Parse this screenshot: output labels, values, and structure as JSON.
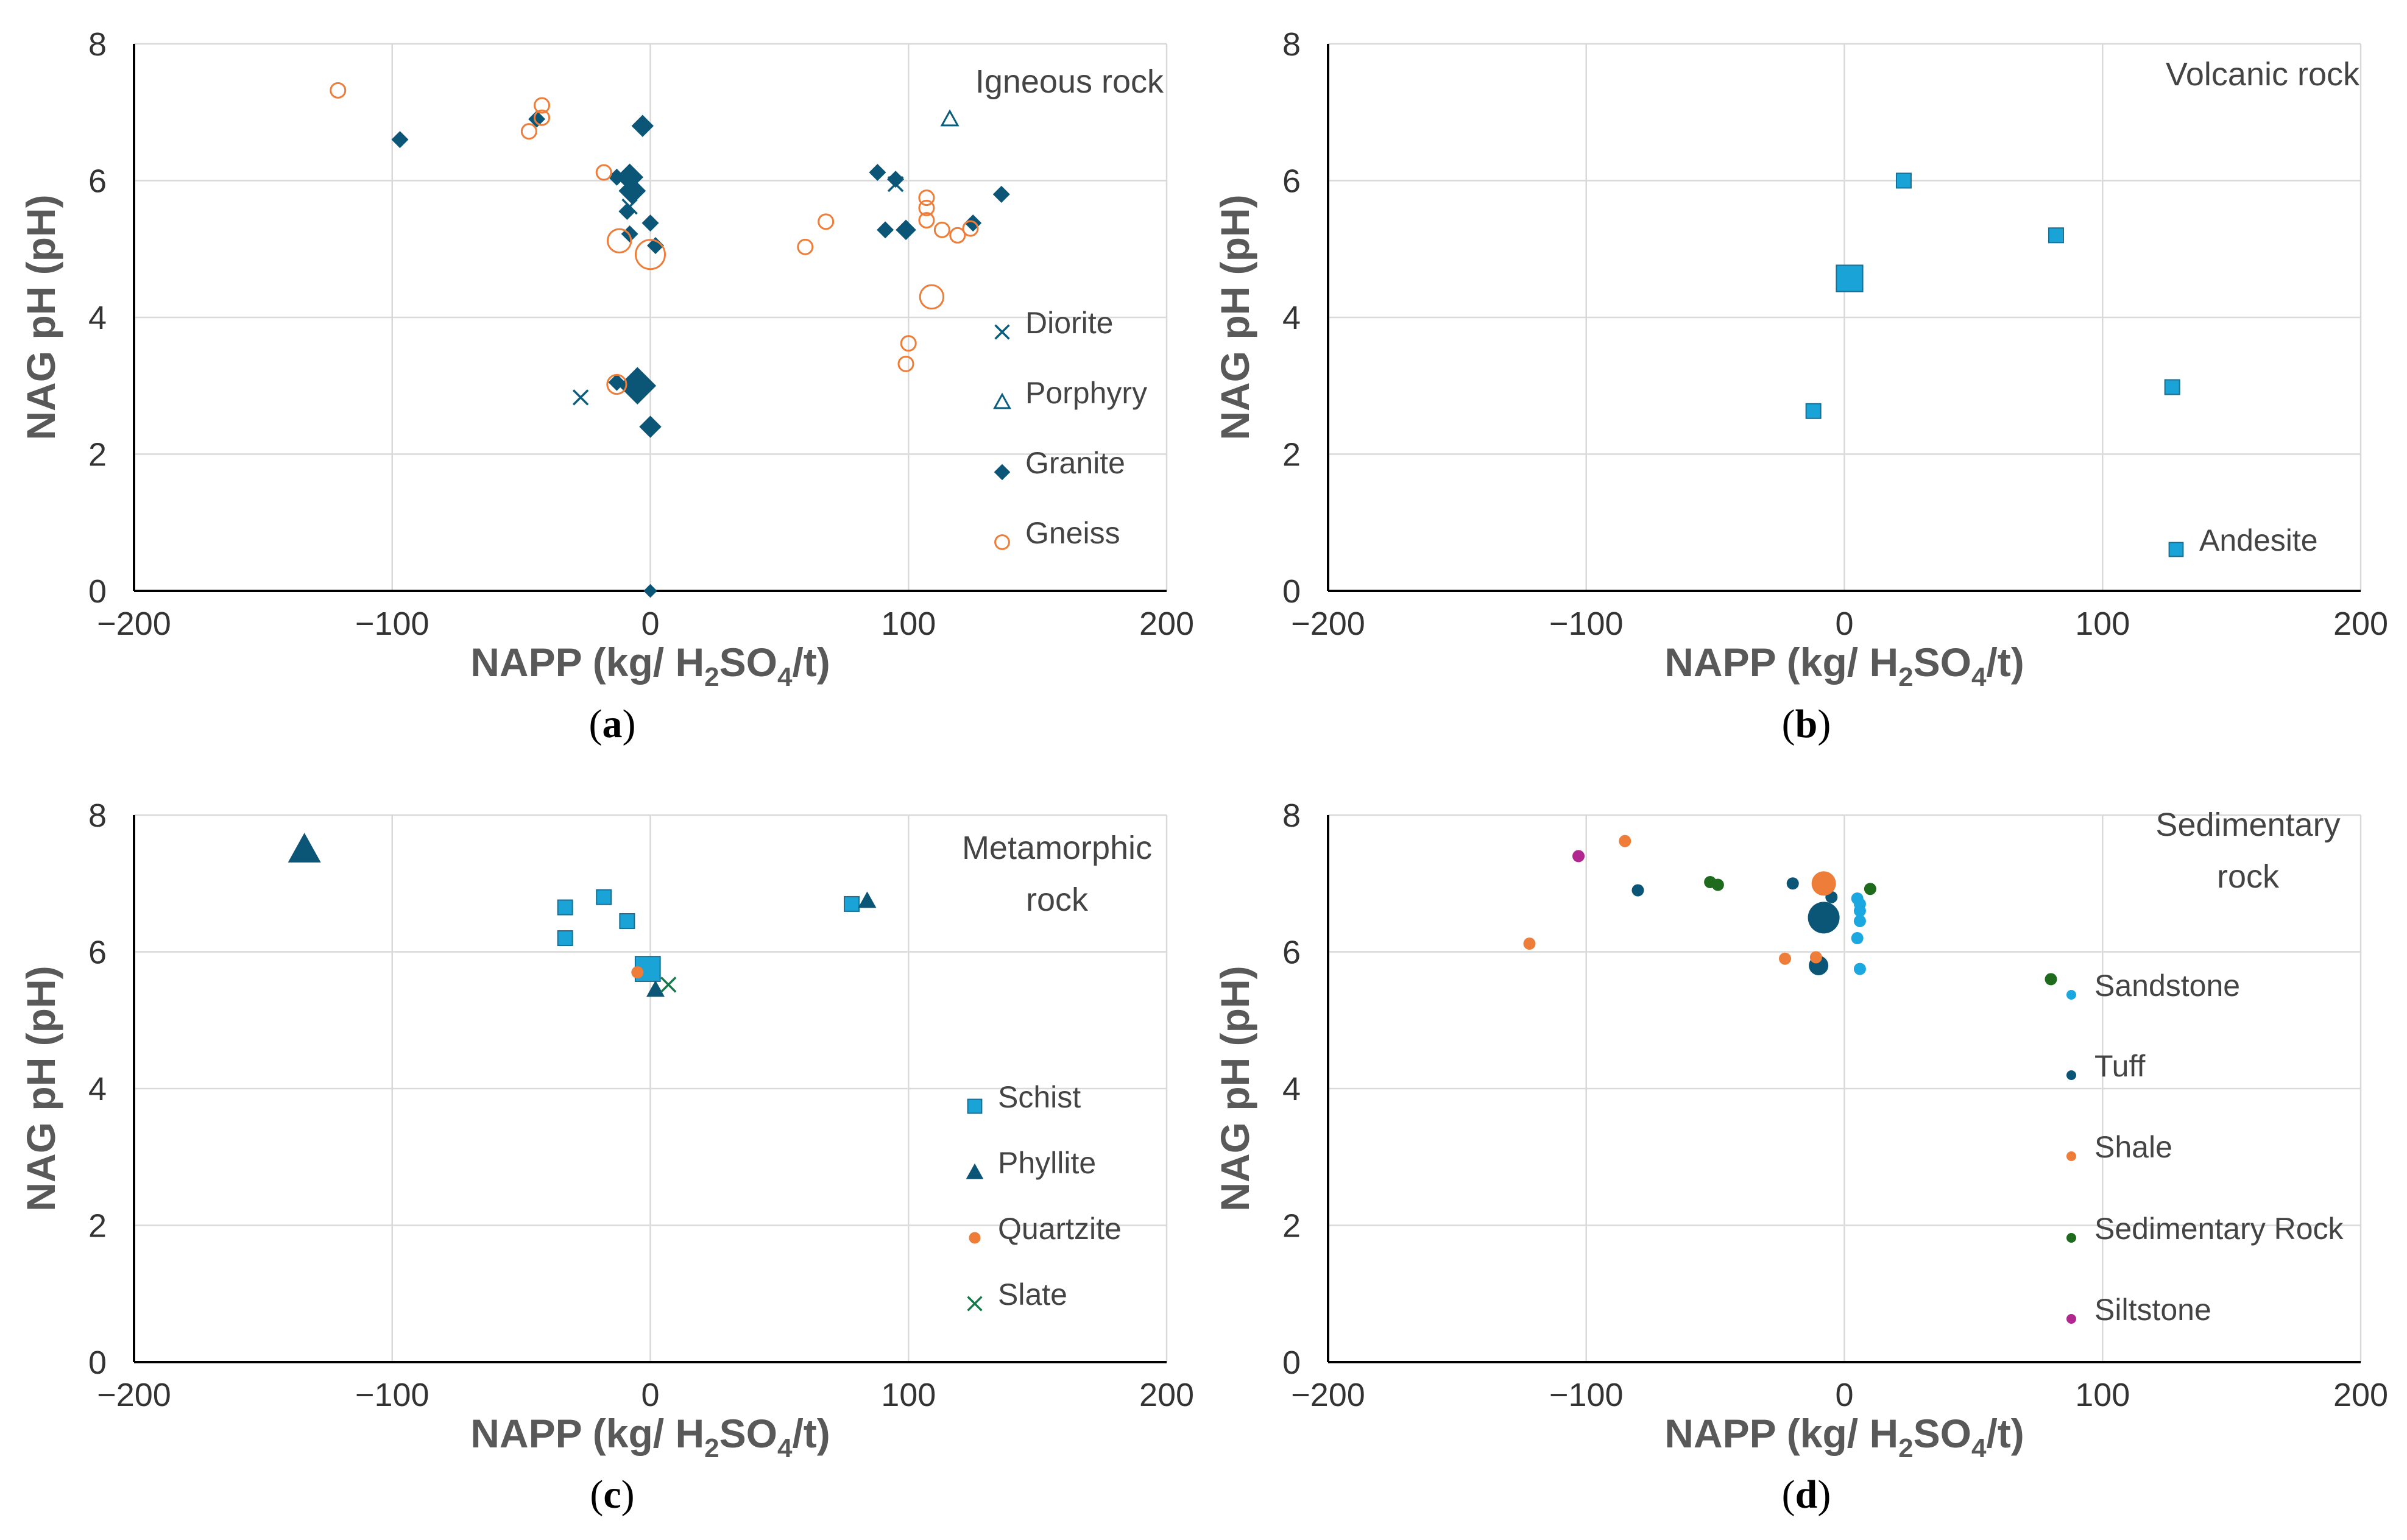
{
  "colors": {
    "grid": "#d9d9d9",
    "axis": "#000000",
    "dark_teal": "#0b5577",
    "orange": "#ee7d3a",
    "sky": "#1aa3d6",
    "green": "#157a4a",
    "dark_green": "#1e6b1e",
    "magenta": "#b0278f",
    "light_blue": "#1ba7e0",
    "teal_marker": "#0b5d7e"
  },
  "chart_data": [
    {
      "id": "a",
      "type": "scatter",
      "panel_label": "a",
      "annotation": [
        "Igneous rock"
      ],
      "xlabel": {
        "main": "NAPP (kg/ H",
        "sub1": "2",
        "mid": "SO",
        "sub2": "4",
        "end": "/t)"
      },
      "ylabel": "NAG pH (pH)",
      "xlim": [
        -200,
        200
      ],
      "ylim": [
        0,
        8
      ],
      "x_ticks": [
        "−200",
        "−100",
        "0",
        "100",
        "200"
      ],
      "y_ticks": [
        "0",
        "2",
        "4",
        "6",
        "8"
      ],
      "grid": true,
      "legend_position": "right",
      "series": [
        {
          "name": "Diorite",
          "marker": "x",
          "color": "#0b5d7e",
          "points": [
            [
              -27,
              2.83,
              1
            ],
            [
              -8,
              5.62,
              1
            ],
            [
              95,
              5.95,
              1
            ]
          ]
        },
        {
          "name": "Porphyry",
          "marker": "triangle-open",
          "color": "#0b5d7e",
          "points": [
            [
              116,
              6.9,
              1
            ]
          ]
        },
        {
          "name": "Granite",
          "marker": "diamond",
          "color": "#0b5577",
          "points": [
            [
              -97,
              6.6,
              1
            ],
            [
              -44,
              6.9,
              1
            ],
            [
              -3,
              6.8,
              1.3
            ],
            [
              -13,
              6.05,
              1
            ],
            [
              -8,
              6.05,
              1.6
            ],
            [
              -7,
              5.85,
              1.6
            ],
            [
              -9,
              5.55,
              1
            ],
            [
              -8,
              5.22,
              1
            ],
            [
              0,
              5.38,
              1
            ],
            [
              2,
              5.05,
              1
            ],
            [
              88,
              6.12,
              1
            ],
            [
              95,
              6.02,
              1
            ],
            [
              99,
              5.28,
              1.2
            ],
            [
              91,
              5.28,
              1
            ],
            [
              125,
              5.38,
              1
            ],
            [
              136,
              5.8,
              1
            ],
            [
              -13,
              3.05,
              1
            ],
            [
              -5,
              3.0,
              2.2
            ],
            [
              0,
              2.4,
              1.3
            ],
            [
              0,
              0,
              0.8
            ]
          ]
        },
        {
          "name": "Gneiss",
          "marker": "circle-open",
          "color": "#ee7d3a",
          "points": [
            [
              -121,
              7.32,
              1
            ],
            [
              -42,
              7.1,
              1
            ],
            [
              -42,
              6.92,
              1
            ],
            [
              -47,
              6.72,
              1
            ],
            [
              -18,
              6.12,
              1
            ],
            [
              -12,
              5.12,
              1.6
            ],
            [
              0,
              4.92,
              2
            ],
            [
              -13,
              3.02,
              1.3
            ],
            [
              60,
              5.03,
              1
            ],
            [
              68,
              5.4,
              1
            ],
            [
              107,
              5.75,
              1
            ],
            [
              107,
              5.6,
              1
            ],
            [
              107,
              5.42,
              1
            ],
            [
              113,
              5.28,
              1
            ],
            [
              119,
              5.2,
              1
            ],
            [
              124,
              5.3,
              1
            ],
            [
              109,
              4.3,
              1.6
            ],
            [
              100,
              3.62,
              1
            ],
            [
              99,
              3.32,
              1
            ]
          ]
        }
      ]
    },
    {
      "id": "b",
      "type": "scatter",
      "panel_label": "b",
      "annotation": [
        "Volcanic rock"
      ],
      "xlabel": {
        "main": "NAPP (kg/ H",
        "sub1": "2",
        "mid": "SO",
        "sub2": "4",
        "end": "/t)"
      },
      "ylabel": "NAG pH (pH)",
      "xlim": [
        -200,
        200
      ],
      "ylim": [
        0,
        8
      ],
      "x_ticks": [
        "−200",
        "−100",
        "0",
        "100",
        "200"
      ],
      "y_ticks": [
        "0",
        "2",
        "4",
        "6",
        "8"
      ],
      "grid": true,
      "legend_position": "bottom-right",
      "series": [
        {
          "name": "Andesite",
          "marker": "square",
          "color": "#1aa3d6",
          "points": [
            [
              23,
              6.0,
              1
            ],
            [
              82,
              5.2,
              1
            ],
            [
              2,
              4.57,
              1.8
            ],
            [
              -12,
              2.63,
              1
            ],
            [
              127,
              2.98,
              1
            ]
          ]
        }
      ]
    },
    {
      "id": "c",
      "type": "scatter",
      "panel_label": "c",
      "annotation": [
        "Metamorphic",
        "rock"
      ],
      "xlabel": {
        "main": "NAPP (kg/ H",
        "sub1": "2",
        "mid": "SO",
        "sub2": "4",
        "end": "/t)"
      },
      "ylabel": "NAG pH (pH)",
      "xlim": [
        -200,
        200
      ],
      "ylim": [
        0,
        8
      ],
      "x_ticks": [
        "−200",
        "−100",
        "0",
        "100",
        "200"
      ],
      "y_ticks": [
        "0",
        "2",
        "4",
        "6",
        "8"
      ],
      "grid": true,
      "legend_position": "right",
      "series": [
        {
          "name": "Schist",
          "marker": "square",
          "color": "#1aa3d6",
          "points": [
            [
              -33,
              6.65,
              1
            ],
            [
              -33,
              6.2,
              1
            ],
            [
              -18,
              6.8,
              1
            ],
            [
              -9,
              6.45,
              1
            ],
            [
              -1,
              5.75,
              1.7
            ],
            [
              78,
              6.7,
              1
            ]
          ]
        },
        {
          "name": "Phyllite",
          "marker": "triangle",
          "color": "#0b5577",
          "points": [
            [
              -134,
              7.5,
              1.8
            ],
            [
              84,
              6.75,
              1
            ],
            [
              2,
              5.45,
              1
            ]
          ]
        },
        {
          "name": "Quartzite",
          "marker": "circle",
          "color": "#ee7d3a",
          "points": [
            [
              -5,
              5.7,
              1
            ]
          ]
        },
        {
          "name": "Slate",
          "marker": "x",
          "color": "#157a4a",
          "points": [
            [
              7,
              5.52,
              1
            ]
          ]
        }
      ]
    },
    {
      "id": "d",
      "type": "scatter",
      "panel_label": "d",
      "annotation": [
        "Sedimentary",
        "rock"
      ],
      "xlabel": {
        "main": "NAPP (kg/ H",
        "sub1": "2",
        "mid": "SO",
        "sub2": "4",
        "end": "/t)"
      },
      "ylabel": "NAG pH (pH)",
      "xlim": [
        -200,
        200
      ],
      "ylim": [
        0,
        8
      ],
      "x_ticks": [
        "−200",
        "−100",
        "0",
        "100",
        "200"
      ],
      "y_ticks": [
        "0",
        "2",
        "4",
        "6",
        "8"
      ],
      "grid": true,
      "legend_position": "right",
      "series": [
        {
          "name": "Sandstone",
          "marker": "circle",
          "color": "#1ba7e0",
          "points": [
            [
              5,
              6.78,
              1
            ],
            [
              6,
              6.7,
              1
            ],
            [
              6,
              6.6,
              1
            ],
            [
              6,
              6.45,
              1
            ],
            [
              5,
              6.2,
              1
            ],
            [
              6,
              5.75,
              1
            ]
          ]
        },
        {
          "name": "Tuff",
          "marker": "circle",
          "color": "#0b5577",
          "points": [
            [
              -80,
              6.9,
              1
            ],
            [
              -20,
              7.0,
              1
            ],
            [
              -5,
              6.8,
              1
            ],
            [
              -8,
              6.5,
              2.6
            ],
            [
              -10,
              5.8,
              1.6
            ]
          ]
        },
        {
          "name": "Shale",
          "marker": "circle",
          "color": "#ee7d3a",
          "points": [
            [
              -85,
              7.62,
              1
            ],
            [
              -122,
              6.12,
              1
            ],
            [
              -23,
              5.9,
              1
            ],
            [
              -8,
              7.0,
              2
            ],
            [
              -11,
              5.92,
              1
            ]
          ]
        },
        {
          "name": "Sedimentary Rock",
          "marker": "circle",
          "color": "#1e6b1e",
          "points": [
            [
              -52,
              7.02,
              1
            ],
            [
              -49,
              6.98,
              1
            ],
            [
              10,
              6.92,
              1
            ],
            [
              80,
              5.6,
              1
            ]
          ]
        },
        {
          "name": "Siltstone",
          "marker": "circle",
          "color": "#b0278f",
          "points": [
            [
              -103,
              7.4,
              1
            ]
          ]
        }
      ]
    }
  ]
}
